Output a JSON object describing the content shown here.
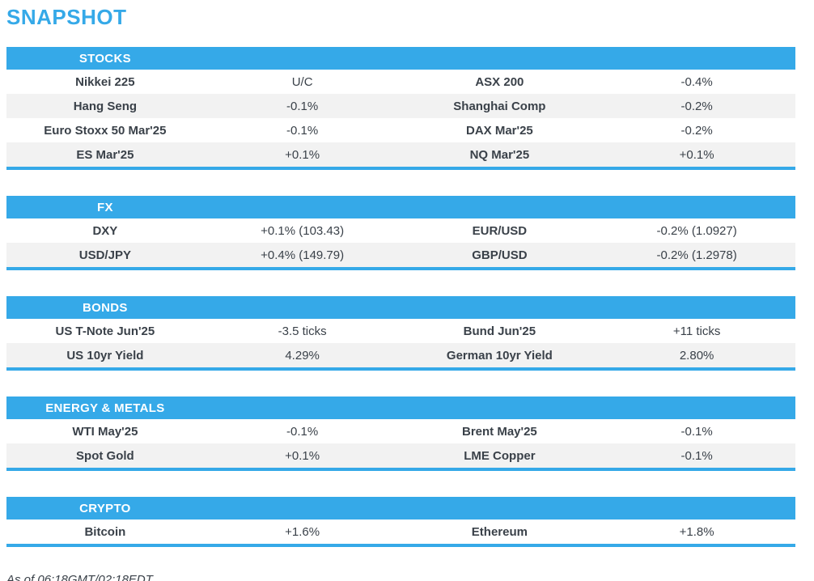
{
  "page": {
    "title": "SNAPSHOT",
    "footer": "As of 06:18GMT/02:18EDT"
  },
  "colors": {
    "accent": "#35a9e8",
    "row_alt": "#f2f2f2",
    "text": "#3a4149",
    "header_text": "#ffffff"
  },
  "sections": [
    {
      "label": "STOCKS",
      "rows": [
        {
          "cells": [
            "Nikkei 225",
            "U/C",
            "ASX 200",
            "-0.4%"
          ]
        },
        {
          "cells": [
            "Hang Seng",
            "-0.1%",
            "Shanghai Comp",
            "-0.2%"
          ]
        },
        {
          "cells": [
            "Euro Stoxx 50 Mar'25",
            "-0.1%",
            "DAX Mar'25",
            "-0.2%"
          ]
        },
        {
          "cells": [
            "ES Mar'25",
            "+0.1%",
            "NQ Mar'25",
            "+0.1%"
          ]
        }
      ]
    },
    {
      "label": "FX",
      "rows": [
        {
          "cells": [
            "DXY",
            "+0.1% (103.43)",
            "EUR/USD",
            "-0.2% (1.0927)"
          ]
        },
        {
          "cells": [
            "USD/JPY",
            "+0.4% (149.79)",
            "GBP/USD",
            "-0.2% (1.2978)"
          ]
        }
      ]
    },
    {
      "label": "BONDS",
      "rows": [
        {
          "cells": [
            "US T-Note Jun'25",
            "-3.5 ticks",
            "Bund Jun'25",
            "+11 ticks"
          ]
        },
        {
          "cells": [
            "US 10yr Yield",
            "4.29%",
            "German 10yr Yield",
            "2.80%"
          ]
        }
      ]
    },
    {
      "label": "ENERGY & METALS",
      "rows": [
        {
          "cells": [
            "WTI May'25",
            "-0.1%",
            "Brent May'25",
            "-0.1%"
          ]
        },
        {
          "cells": [
            "Spot Gold",
            "+0.1%",
            "LME Copper",
            "-0.1%"
          ]
        }
      ]
    },
    {
      "label": "CRYPTO",
      "rows": [
        {
          "cells": [
            "Bitcoin",
            "+1.6%",
            "Ethereum",
            "+1.8%"
          ]
        }
      ]
    }
  ]
}
